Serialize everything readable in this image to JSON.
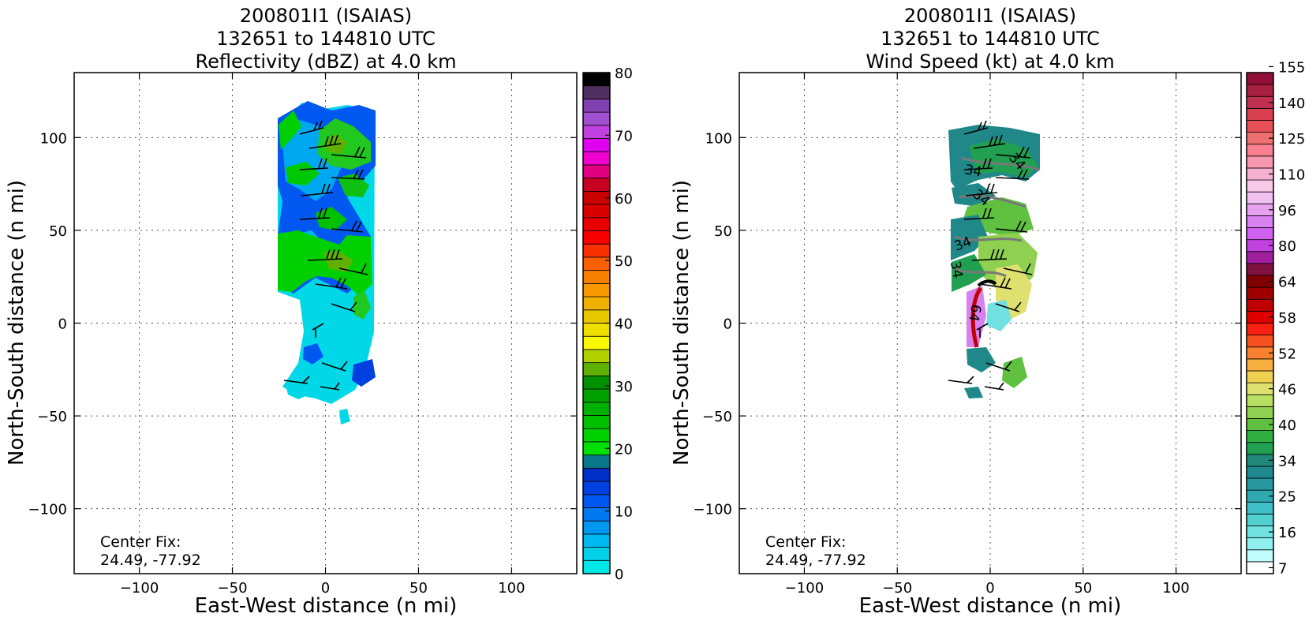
{
  "chart_data": [
    {
      "type": "heatmap",
      "title": [
        "200801I1 (ISAIAS)",
        "132651 to 144810 UTC",
        "Reflectivity (dBZ) at 4.0 km"
      ],
      "xlabel": "East-West distance (n mi)",
      "ylabel": "North-South distance (n mi)",
      "xlim": [
        -135,
        135
      ],
      "ylim": [
        -135,
        135
      ],
      "xticks": [
        -100,
        -50,
        0,
        50,
        100
      ],
      "yticks": [
        -100,
        -50,
        0,
        50,
        100
      ],
      "tick_labels_x": [
        "−100",
        "−50",
        "0",
        "50",
        "100"
      ],
      "tick_labels_y": [
        "−100",
        "−50",
        "0",
        "50",
        "100"
      ],
      "grid": true,
      "annotation": [
        "Center Fix:",
        "24.49, -77.92"
      ],
      "colorbar": {
        "min": 0,
        "max": 80,
        "tick_values": [
          0,
          10,
          20,
          30,
          40,
          50,
          60,
          70,
          80
        ],
        "tick_labels": [
          "0",
          "10",
          "20",
          "30",
          "40",
          "50",
          "60",
          "70",
          "80"
        ],
        "colors": [
          "#00e8e8",
          "#00d0e8",
          "#00b8f0",
          "#0098f0",
          "#0078f0",
          "#0058f0",
          "#0040e0",
          "#0030c8",
          "#087888",
          "#00e000",
          "#00d000",
          "#00c000",
          "#00b000",
          "#00a000",
          "#009000",
          "#60b000",
          "#b0d000",
          "#f8f800",
          "#f0e000",
          "#e8c800",
          "#f0b000",
          "#f89800",
          "#f88000",
          "#f86000",
          "#f83000",
          "#f80000",
          "#e80000",
          "#d80000",
          "#c80000",
          "#c80020",
          "#e00080",
          "#f000d0",
          "#e000f0",
          "#c040e0",
          "#a050d0",
          "#8040b0",
          "#503060",
          "#000000"
        ]
      }
    },
    {
      "type": "heatmap",
      "title": [
        "200801I1 (ISAIAS)",
        "132651 to 144810 UTC",
        "Wind Speed (kt) at 4.0 km"
      ],
      "xlabel": "East-West distance (n mi)",
      "ylabel": "North-South distance (n mi)",
      "xlim": [
        -135,
        135
      ],
      "ylim": [
        -135,
        135
      ],
      "xticks": [
        -100,
        -50,
        0,
        50,
        100
      ],
      "yticks": [
        -100,
        -50,
        0,
        50,
        100
      ],
      "tick_labels_x": [
        "−100",
        "−50",
        "0",
        "50",
        "100"
      ],
      "tick_labels_y": [
        "−100",
        "−50",
        "0",
        "50",
        "100"
      ],
      "grid": true,
      "annotation": [
        "Center Fix:",
        "24.49, -77.92"
      ],
      "contour_labels": [
        "34",
        "34",
        "34",
        "34",
        "34",
        "64"
      ],
      "colorbar": {
        "tick_labels": [
          "7",
          "16",
          "25",
          "34",
          "40",
          "46",
          "52",
          "58",
          "64",
          "80",
          "96",
          "110",
          "125",
          "140",
          "155"
        ],
        "colors": [
          "#ffffff",
          "#c0fcfc",
          "#90f0f0",
          "#70e0e0",
          "#50d0d0",
          "#40c0c8",
          "#30a8b0",
          "#2898a0",
          "#208890",
          "#208878",
          "#20a050",
          "#30b040",
          "#60c040",
          "#90d050",
          "#b8e060",
          "#e0e070",
          "#f0d050",
          "#f8b040",
          "#f88030",
          "#f85020",
          "#f82010",
          "#e00000",
          "#c00000",
          "#a00000",
          "#800000",
          "#801040",
          "#a020a0",
          "#c040e0",
          "#d060f0",
          "#d880f0",
          "#e8a0f0",
          "#f0c0f0",
          "#f8c8e8",
          "#f8b0d0",
          "#f898b0",
          "#f88090",
          "#f07070",
          "#e85058",
          "#d84050",
          "#c03050",
          "#a82040",
          "#901038"
        ]
      }
    }
  ]
}
